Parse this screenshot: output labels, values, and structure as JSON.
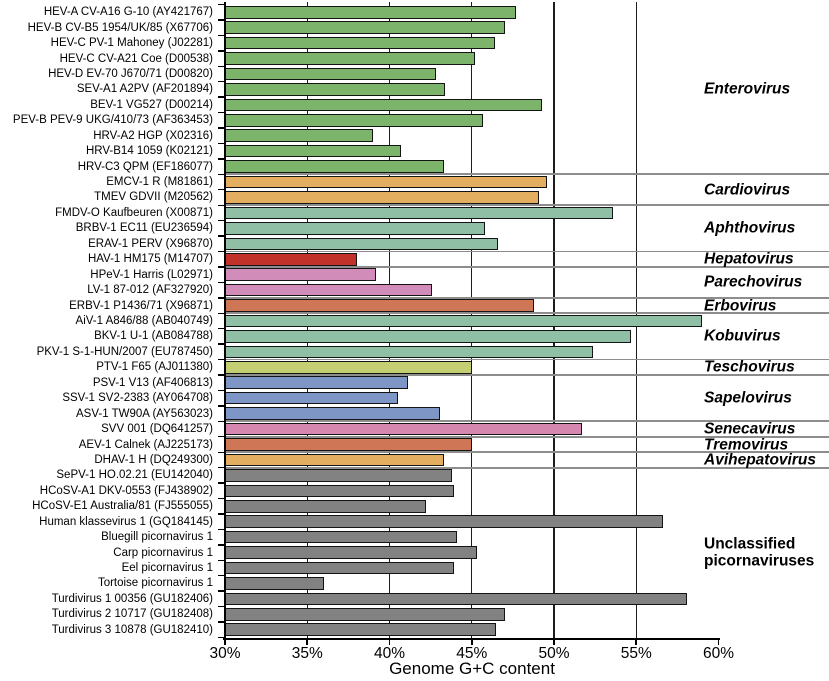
{
  "chart_data": {
    "type": "bar",
    "orientation": "horizontal",
    "xlabel": "Genome G+C content",
    "value_unit": "percent G+C",
    "xlim": [
      30,
      60
    ],
    "x_tick_values": [
      30,
      35,
      40,
      45,
      50,
      55,
      60
    ],
    "x_tick_labels": [
      "30%",
      "35%",
      "40%",
      "45%",
      "50%",
      "55%",
      "60%"
    ],
    "gridlines_at": [
      35,
      40,
      45,
      50,
      55
    ],
    "legend_position": "genus labels on right side, group separators across plot",
    "groups": [
      {
        "genus": "Enterovirus",
        "label_style": "bold-italic",
        "color": "#7DB46C",
        "bars": [
          {
            "label": "HEV-A CV-A16 G-10 (AY421767)",
            "value": 47.7
          },
          {
            "label": "HEV-B CV-B5 1954/UK/85 (X67706)",
            "value": 47.0
          },
          {
            "label": "HEV-C PV-1 Mahoney (J02281)",
            "value": 46.4
          },
          {
            "label": "HEV-C CV-A21 Coe (D00538)",
            "value": 45.2
          },
          {
            "label": "HEV-D EV-70 J670/71 (D00820)",
            "value": 42.8
          },
          {
            "label": "SEV-A1 A2PV (AF201894)",
            "value": 43.4
          },
          {
            "label": "BEV-1 VG527 (D00214)",
            "value": 49.3
          },
          {
            "label": "PEV-B PEV-9 UKG/410/73 (AF363453)",
            "value": 45.7
          },
          {
            "label": "HRV-A2 HGP (X02316)",
            "value": 39.0
          },
          {
            "label": "HRV-B14 1059 (K02121)",
            "value": 40.7
          },
          {
            "label": "HRV-C3 QPM (EF186077)",
            "value": 43.3
          }
        ]
      },
      {
        "genus": "Cardiovirus",
        "label_style": "bold-italic",
        "color": "#E4AE60",
        "bars": [
          {
            "label": "EMCV-1 R (M81861)",
            "value": 49.6
          },
          {
            "label": "TMEV GDVII (M20562)",
            "value": 49.1
          }
        ]
      },
      {
        "genus": "Aphthovirus",
        "label_style": "bold-italic",
        "color": "#8FC0A6",
        "bars": [
          {
            "label": "FMDV-O Kaufbeuren (X00871)",
            "value": 53.6
          },
          {
            "label": "BRBV-1 EC11 (EU236594)",
            "value": 45.8
          },
          {
            "label": "ERAV-1 PERV (X96870)",
            "value": 46.6
          }
        ]
      },
      {
        "genus": "Hepatovirus",
        "label_style": "bold-italic",
        "color": "#C23129",
        "bars": [
          {
            "label": "HAV-1 HM175 (M14707)",
            "value": 38.0
          }
        ]
      },
      {
        "genus": "Parechovirus",
        "label_style": "bold-italic",
        "color": "#D18CBA",
        "bars": [
          {
            "label": "HPeV-1 Harris (L02971)",
            "value": 39.2
          },
          {
            "label": "LV-1 87-012 (AF327920)",
            "value": 42.6
          }
        ]
      },
      {
        "genus": "Erbovirus",
        "label_style": "bold-italic",
        "color": "#CE7656",
        "bars": [
          {
            "label": "ERBV-1 P1436/71 (X96871)",
            "value": 48.8
          }
        ]
      },
      {
        "genus": "Kobuvirus",
        "label_style": "bold-italic",
        "color": "#8FC0A6",
        "bars": [
          {
            "label": "AiV-1 A846/88 (AB040749)",
            "value": 59.0
          },
          {
            "label": "BKV-1 U-1 (AB084788)",
            "value": 54.7
          },
          {
            "label": "PKV-1 S-1-HUN/2007 (EU787450)",
            "value": 52.4
          }
        ]
      },
      {
        "genus": "Teschovirus",
        "label_style": "bold-italic",
        "color": "#C4CF74",
        "bars": [
          {
            "label": "PTV-1 F65 (AJ011380)",
            "value": 45.0
          }
        ]
      },
      {
        "genus": "Sapelovirus",
        "label_style": "bold-italic",
        "color": "#7E96C6",
        "bars": [
          {
            "label": "PSV-1 V13 (AF406813)",
            "value": 41.1
          },
          {
            "label": "SSV-1 SV2-2383 (AY064708)",
            "value": 40.5
          },
          {
            "label": "ASV-1 TW90A (AY563023)",
            "value": 43.1
          }
        ]
      },
      {
        "genus": "Senecavirus",
        "label_style": "bold-italic",
        "color": "#D687AF",
        "bars": [
          {
            "label": "SVV 001 (DQ641257)",
            "value": 51.7
          }
        ]
      },
      {
        "genus": "Tremovirus",
        "label_style": "bold-italic",
        "color": "#CE7656",
        "bars": [
          {
            "label": "AEV-1 Calnek (AJ225173)",
            "value": 45.0
          }
        ]
      },
      {
        "genus": "Avihepatovirus",
        "label_style": "bold-italic",
        "color": "#E4AE60",
        "bars": [
          {
            "label": "DHAV-1 H (DQ249300)",
            "value": 43.3
          }
        ]
      },
      {
        "genus": "Unclassified picornaviruses",
        "label_lines": [
          "Unclassified",
          "picornaviruses"
        ],
        "label_style": "bold",
        "color": "#828282",
        "bars": [
          {
            "label": "SePV-1 HO.02.21 (EU142040)",
            "value": 43.8
          },
          {
            "label": "HCoSV-A1 DKV-0553 (FJ438902)",
            "value": 43.9
          },
          {
            "label": "HCoSV-E1 Australia/81 (FJ555055)",
            "value": 42.2
          },
          {
            "label": "Human klassevirus 1 (GQ184145)",
            "value": 56.6
          },
          {
            "label": "Bluegill picornavirus 1",
            "value": 44.1
          },
          {
            "label": "Carp picornavirus 1",
            "value": 45.3
          },
          {
            "label": "Eel picornavirus 1",
            "value": 43.9
          },
          {
            "label": "Tortoise picornavirus 1",
            "value": 36.0
          },
          {
            "label": "Turdivirus 1 00356 (GU182406)",
            "value": 58.1
          },
          {
            "label": "Turdivirus 2 10717 (GU182408)",
            "value": 47.0
          },
          {
            "label": "Turdivirus 3 10878 (GU182410)",
            "value": 46.5
          }
        ]
      }
    ]
  }
}
